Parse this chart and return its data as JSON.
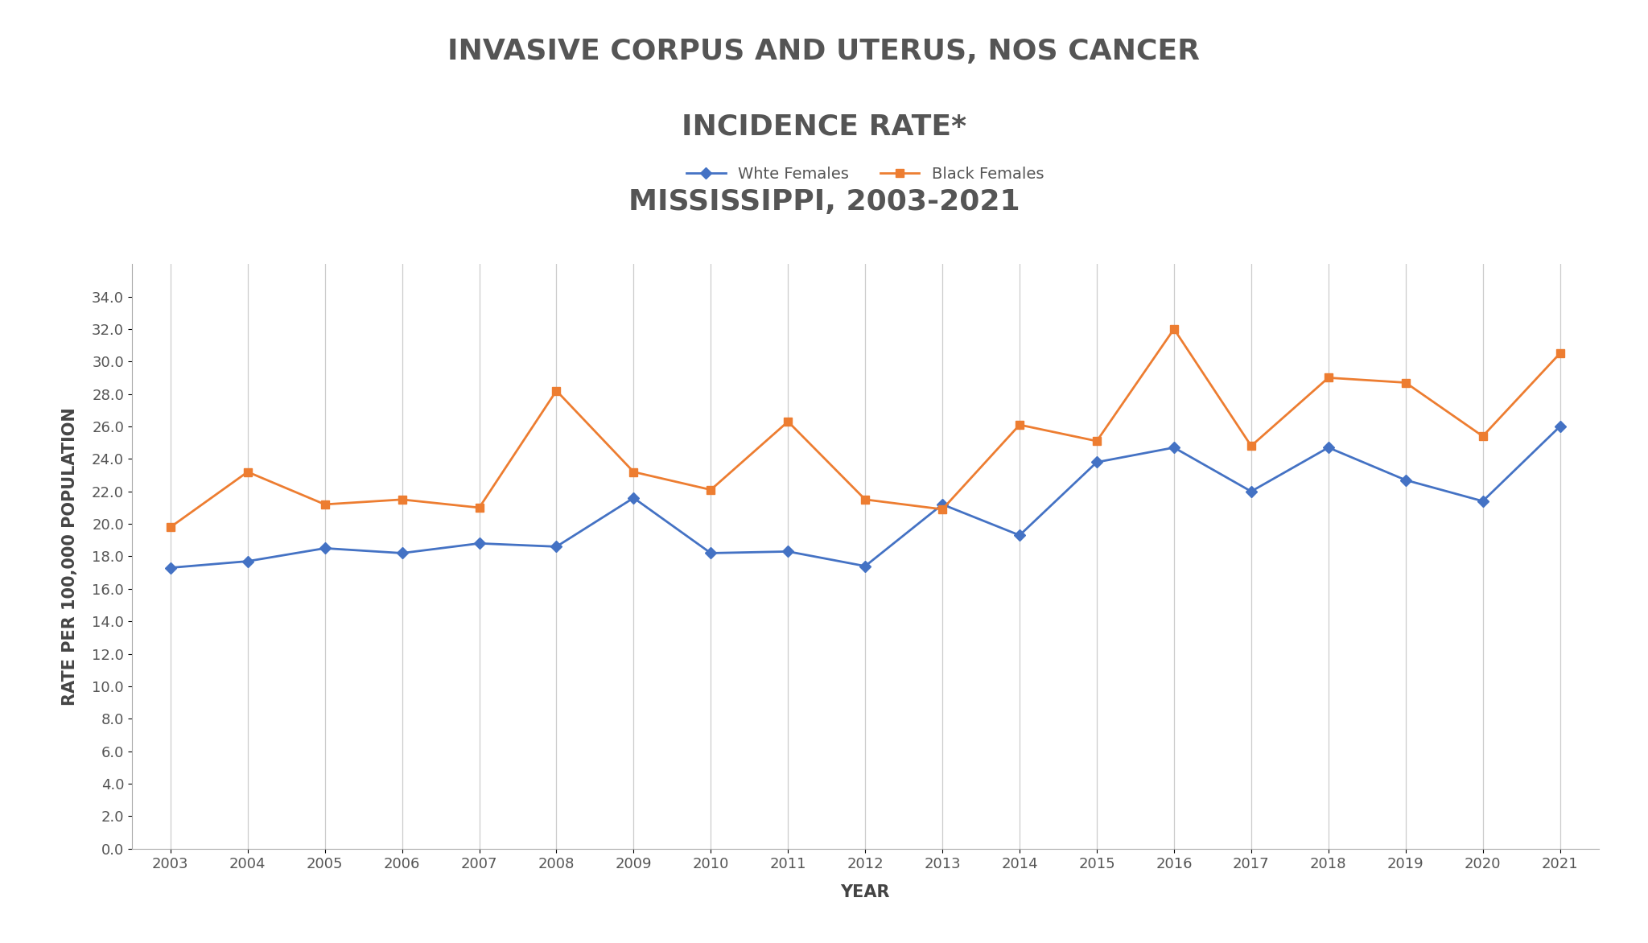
{
  "title_line1": "INVASIVE CORPUS AND UTERUS, NOS CANCER",
  "title_line2": "INCIDENCE RATE*",
  "title_line3": "MISSISSIPPI, 2003-2021",
  "xlabel": "YEAR",
  "ylabel": "RATE PER 100,000 POPULATION",
  "years": [
    2003,
    2004,
    2005,
    2006,
    2007,
    2008,
    2009,
    2010,
    2011,
    2012,
    2013,
    2014,
    2015,
    2016,
    2017,
    2018,
    2019,
    2020,
    2021
  ],
  "white_females": [
    17.3,
    17.7,
    18.5,
    18.2,
    18.8,
    18.6,
    21.6,
    18.2,
    18.3,
    17.4,
    21.2,
    19.3,
    23.8,
    24.7,
    22.0,
    24.7,
    22.7,
    21.4,
    26.0
  ],
  "black_females": [
    19.8,
    23.2,
    21.2,
    21.5,
    21.0,
    28.2,
    23.2,
    22.1,
    26.3,
    21.5,
    20.9,
    26.1,
    25.1,
    32.0,
    24.8,
    29.0,
    28.7,
    25.4,
    30.5
  ],
  "white_color": "#4472c4",
  "black_color": "#ed7d31",
  "white_label": "Whte Females",
  "black_label": "Black Females",
  "ylim": [
    0,
    36
  ],
  "yticks": [
    0.0,
    2.0,
    4.0,
    6.0,
    8.0,
    10.0,
    12.0,
    14.0,
    16.0,
    18.0,
    20.0,
    22.0,
    24.0,
    26.0,
    28.0,
    30.0,
    32.0,
    34.0
  ],
  "background_color": "#ffffff",
  "title_fontsize": 26,
  "axis_label_fontsize": 15,
  "tick_fontsize": 13,
  "legend_fontsize": 14
}
